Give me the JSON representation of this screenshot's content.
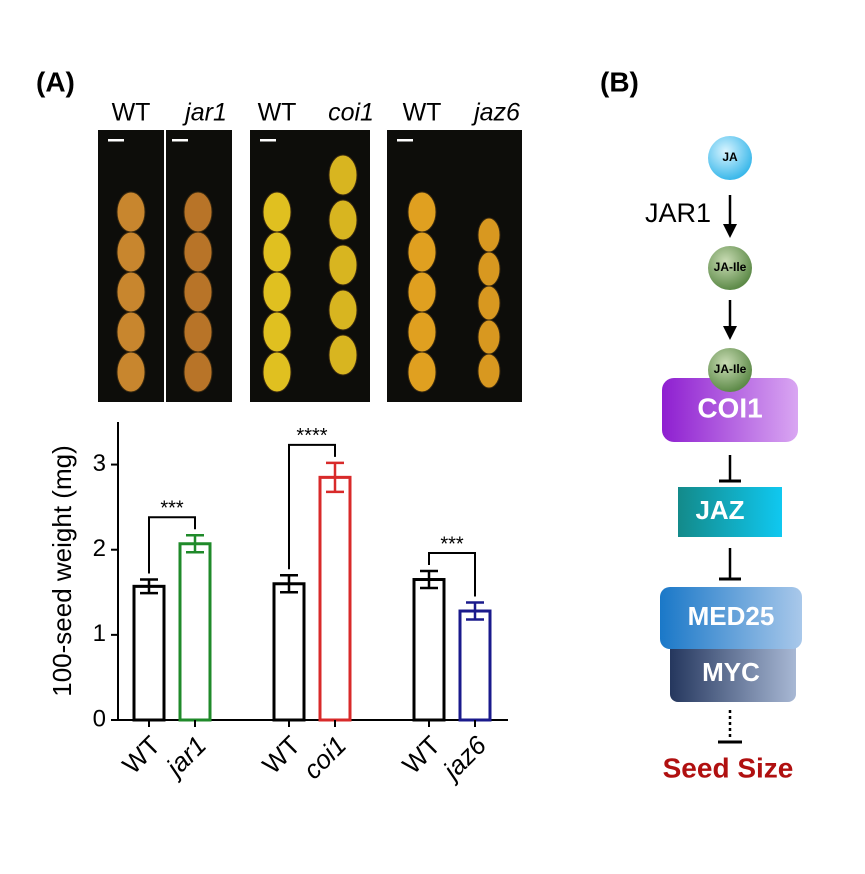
{
  "panel_labels": [
    "(A)",
    "(B)"
  ],
  "photo_labels": [
    [
      "WT",
      "jar1"
    ],
    [
      "WT",
      "coi1"
    ],
    [
      "WT",
      "jaz6"
    ]
  ],
  "chart_data": {
    "type": "bar",
    "ylabel": "100-seed weight (mg)",
    "categories": [
      "WT",
      "jar1",
      "WT",
      "coi1",
      "WT",
      "jaz6"
    ],
    "values": [
      1.57,
      2.07,
      1.6,
      2.85,
      1.65,
      1.28
    ],
    "errors": [
      0.08,
      0.1,
      0.1,
      0.17,
      0.1,
      0.1
    ],
    "colors": [
      "#000000",
      "#1f8a2a",
      "#000000",
      "#d82a2a",
      "#000000",
      "#1a1a8c"
    ],
    "ylim": [
      0,
      3.5
    ],
    "yticks": [
      0,
      1,
      2,
      3
    ],
    "annotations": [
      "***",
      "****",
      "***"
    ]
  },
  "diagram": {
    "nodes": [
      "JA",
      "JA-Ile",
      "JA-Ile",
      "COI1",
      "JAZ",
      "MED25",
      "MYC",
      "Seed Size"
    ],
    "edge_label": "JAR1"
  }
}
